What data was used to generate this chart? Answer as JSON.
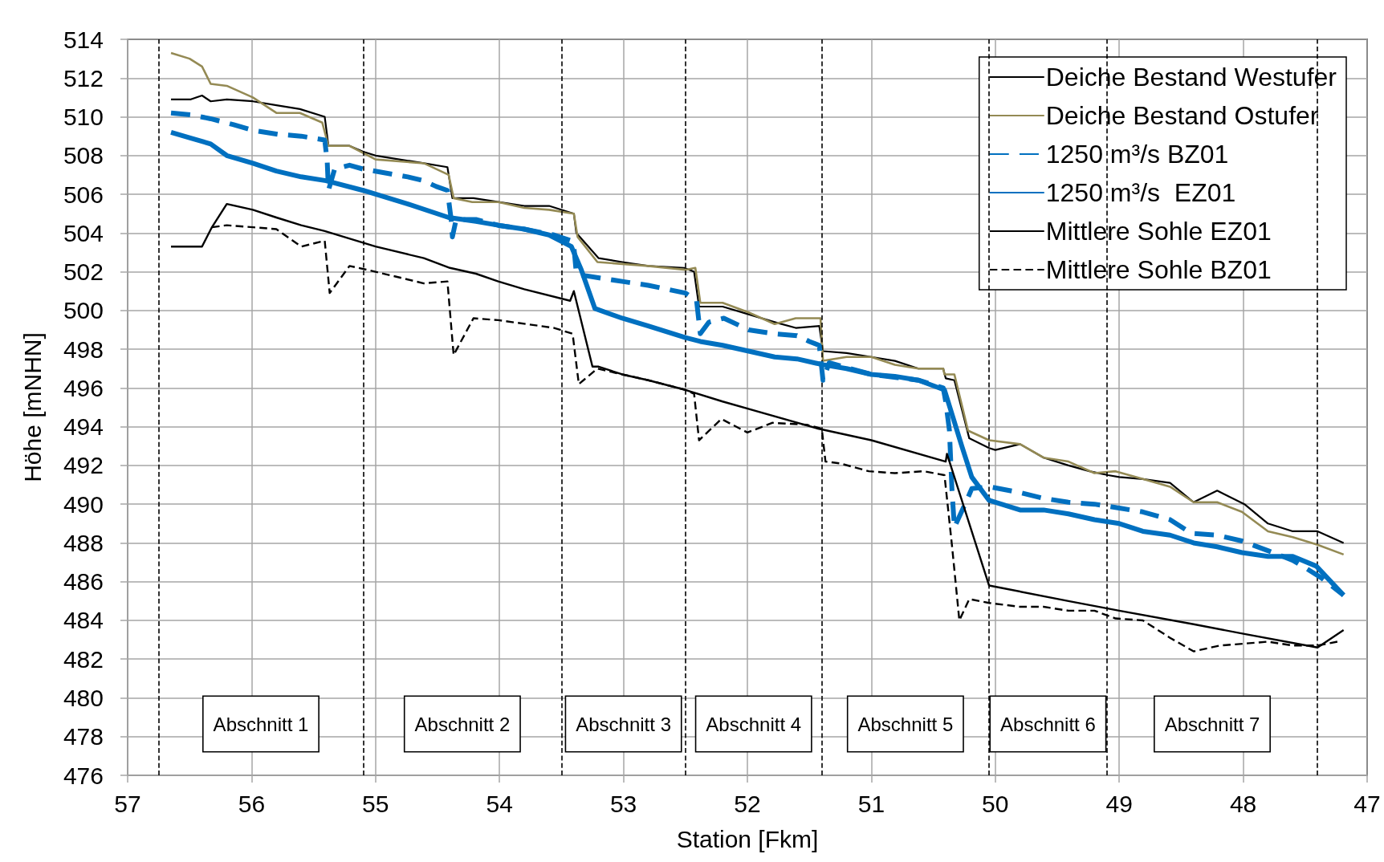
{
  "chart_data": {
    "type": "line",
    "xlabel": "Station [Fkm]",
    "ylabel": "Höhe [mNHN]",
    "xlim": [
      57,
      47
    ],
    "xticks": [
      57,
      56,
      55,
      54,
      53,
      52,
      51,
      50,
      49,
      48,
      47
    ],
    "ylim": [
      476,
      514
    ],
    "yticks": [
      476,
      478,
      480,
      482,
      484,
      486,
      488,
      490,
      492,
      494,
      496,
      498,
      500,
      502,
      504,
      506,
      508,
      510,
      512,
      514
    ],
    "grid": true,
    "legend": "top right",
    "series": [
      {
        "name": "Deiche Bestand Westufer",
        "color": "#000000",
        "line_style": "solid",
        "x": [
          56.65,
          56.49,
          56.4,
          56.33,
          56.2,
          55.99,
          55.8,
          55.61,
          55.41,
          55.38,
          55.21,
          55.1,
          55.0,
          54.61,
          54.42,
          54.38,
          54.21,
          54.01,
          53.8,
          53.6,
          53.4,
          53.38,
          53.2,
          53.01,
          52.8,
          52.51,
          52.43,
          52.39,
          52.2,
          51.99,
          51.78,
          51.61,
          51.42,
          51.39,
          51.2,
          51.0,
          50.81,
          50.62,
          50.42,
          50.4,
          50.33,
          50.21,
          50.05,
          50.0,
          49.8,
          49.61,
          49.41,
          49.24,
          49.09,
          49.0,
          48.81,
          48.59,
          48.4,
          48.21,
          47.99,
          47.8,
          47.6,
          47.4,
          47.19
        ],
        "values": [
          510.9,
          510.9,
          511.1,
          510.8,
          510.9,
          510.8,
          510.6,
          510.4,
          510.0,
          508.5,
          508.5,
          508.2,
          508.0,
          507.6,
          507.4,
          505.8,
          505.8,
          505.6,
          505.4,
          505.4,
          505.0,
          504.0,
          502.7,
          502.5,
          502.3,
          502.2,
          502.0,
          500.2,
          500.2,
          499.8,
          499.4,
          499.1,
          499.2,
          497.9,
          497.8,
          497.6,
          497.4,
          497.0,
          497.0,
          496.5,
          496.4,
          493.4,
          492.9,
          492.8,
          493.1,
          492.4,
          492.0,
          491.7,
          491.5,
          491.4,
          491.3,
          491.1,
          490.1,
          490.7,
          490.0,
          489.0,
          488.6,
          488.6,
          488.0
        ]
      },
      {
        "name": "Deiche Bestand Ostufer",
        "color": "#948a54",
        "line_style": "solid",
        "x": [
          56.65,
          56.5,
          56.4,
          56.33,
          56.2,
          55.99,
          55.8,
          55.61,
          55.43,
          55.38,
          55.21,
          55.0,
          54.61,
          54.41,
          54.37,
          54.22,
          54.01,
          53.8,
          53.6,
          53.4,
          53.37,
          53.21,
          52.8,
          52.5,
          52.42,
          52.38,
          52.2,
          51.99,
          51.78,
          51.61,
          51.41,
          51.39,
          51.2,
          51.0,
          50.81,
          50.62,
          50.42,
          50.41,
          50.33,
          50.22,
          50.05,
          49.8,
          49.61,
          49.41,
          49.2,
          49.03,
          48.81,
          48.59,
          48.4,
          48.21,
          48.01,
          47.8,
          47.6,
          47.4,
          47.19
        ],
        "values": [
          513.3,
          513.0,
          512.6,
          511.7,
          511.6,
          511.0,
          510.2,
          510.2,
          509.7,
          508.5,
          508.5,
          507.8,
          507.6,
          507.0,
          505.8,
          505.6,
          505.6,
          505.3,
          505.2,
          505.0,
          503.8,
          502.5,
          502.3,
          502.1,
          502.2,
          500.4,
          500.4,
          499.9,
          499.3,
          499.6,
          499.6,
          497.4,
          497.6,
          497.6,
          497.2,
          497.0,
          497.0,
          496.7,
          496.7,
          493.8,
          493.3,
          493.1,
          492.4,
          492.2,
          491.6,
          491.7,
          491.3,
          490.9,
          490.1,
          490.1,
          489.6,
          488.6,
          488.3,
          487.9,
          487.4
        ]
      },
      {
        "name": "1250 m³/s BZ01",
        "color": "#0070c0",
        "line_style": "dashed",
        "x": [
          56.65,
          56.49,
          56.33,
          56.15,
          55.99,
          55.79,
          55.6,
          55.41,
          55.39,
          55.38,
          55.33,
          55.21,
          55.1,
          54.74,
          54.61,
          54.51,
          54.42,
          54.39,
          54.38,
          54.35,
          54.19,
          54.01,
          53.8,
          53.56,
          53.42,
          53.4,
          53.38,
          53.31,
          53.01,
          52.8,
          52.5,
          52.41,
          52.38,
          52.31,
          52.19,
          51.99,
          51.78,
          51.6,
          51.5,
          51.42,
          51.39,
          51.34,
          51.0,
          50.62,
          50.42,
          50.4,
          50.37,
          50.35,
          50.33,
          50.23,
          50.19,
          50.05,
          49.8,
          49.61,
          49.41,
          49.2,
          49.0,
          48.81,
          48.59,
          48.42,
          48.21,
          48.01,
          47.8,
          47.6,
          47.47,
          47.37,
          47.19
        ],
        "values": [
          510.2,
          510.1,
          509.9,
          509.6,
          509.3,
          509.1,
          509.0,
          508.8,
          507.7,
          506.2,
          507.3,
          507.5,
          507.3,
          506.9,
          506.7,
          506.4,
          506.2,
          504.7,
          503.8,
          504.7,
          504.7,
          504.4,
          504.2,
          503.9,
          503.6,
          503.3,
          501.9,
          501.8,
          501.5,
          501.3,
          500.9,
          500.5,
          498.8,
          499.4,
          499.6,
          499.0,
          498.8,
          498.7,
          498.4,
          498.2,
          496.4,
          497.3,
          496.7,
          496.4,
          496.0,
          495.3,
          493.8,
          490.8,
          488.8,
          490.2,
          490.8,
          490.9,
          490.6,
          490.3,
          490.1,
          490.0,
          489.8,
          489.6,
          489.2,
          488.5,
          488.4,
          488.1,
          487.6,
          487.1,
          486.6,
          486.2,
          485.3
        ]
      },
      {
        "name": "1250 m³/s  EZ01",
        "color": "#0070c0",
        "line_style": "solid",
        "x": [
          56.65,
          56.49,
          56.33,
          56.2,
          55.99,
          55.8,
          55.6,
          55.4,
          55.1,
          54.74,
          54.41,
          54.19,
          54.01,
          53.8,
          53.6,
          53.42,
          53.34,
          53.23,
          53.01,
          52.8,
          52.5,
          52.38,
          52.2,
          51.99,
          51.78,
          51.6,
          51.39,
          51.2,
          51.0,
          50.81,
          50.62,
          50.41,
          50.27,
          50.19,
          50.05,
          49.8,
          49.61,
          49.41,
          49.2,
          49.0,
          48.81,
          48.59,
          48.4,
          48.21,
          48.01,
          47.8,
          47.6,
          47.41,
          47.19
        ],
        "values": [
          509.2,
          508.9,
          508.6,
          508.0,
          507.6,
          507.2,
          506.9,
          506.7,
          506.2,
          505.5,
          504.8,
          504.6,
          504.4,
          504.2,
          503.9,
          503.3,
          502.1,
          500.1,
          499.6,
          499.2,
          498.6,
          498.4,
          498.2,
          497.9,
          497.6,
          497.5,
          497.2,
          497.0,
          496.7,
          496.6,
          496.4,
          495.9,
          493.0,
          491.4,
          490.2,
          489.7,
          489.7,
          489.5,
          489.2,
          489.0,
          488.6,
          488.4,
          488.0,
          487.8,
          487.5,
          487.3,
          487.3,
          486.8,
          485.3
        ]
      },
      {
        "name": "Mittlere Sohle EZ01",
        "color": "#000000",
        "line_style": "solid",
        "x": [
          56.65,
          56.4,
          56.32,
          56.2,
          55.99,
          55.8,
          55.6,
          55.41,
          55.0,
          54.61,
          54.4,
          54.19,
          54.01,
          53.8,
          53.43,
          53.4,
          53.25,
          53.2,
          53.01,
          52.8,
          52.5,
          52.2,
          51.43,
          51.0,
          50.4,
          50.39,
          50.05,
          49.41,
          49.0,
          48.4,
          47.99,
          47.4,
          47.19
        ],
        "values": [
          503.3,
          503.3,
          504.3,
          505.5,
          505.2,
          504.8,
          504.4,
          504.1,
          503.3,
          502.7,
          502.2,
          501.9,
          501.5,
          501.1,
          500.5,
          501.0,
          497.1,
          497.1,
          496.7,
          496.4,
          495.9,
          495.3,
          493.9,
          493.3,
          492.2,
          492.6,
          485.8,
          485.0,
          484.5,
          483.8,
          483.3,
          482.6,
          483.5
        ]
      },
      {
        "name": "Mittlere Sohle BZ01",
        "color": "#000000",
        "line_style": "dashed",
        "x": [
          56.32,
          56.2,
          55.99,
          55.8,
          55.6,
          55.41,
          55.37,
          55.21,
          55.0,
          54.61,
          54.42,
          54.37,
          54.21,
          54.01,
          53.56,
          53.41,
          53.36,
          53.21,
          53.01,
          52.8,
          52.5,
          52.43,
          52.39,
          52.21,
          52.0,
          51.8,
          51.52,
          51.4,
          51.37,
          51.25,
          51.02,
          50.81,
          50.58,
          50.41,
          50.35,
          50.29,
          50.21,
          50.05,
          49.8,
          49.61,
          49.41,
          49.2,
          49.03,
          48.81,
          48.59,
          48.4,
          48.19,
          47.99,
          47.8,
          47.6,
          47.4,
          47.24
        ],
        "values": [
          504.3,
          504.4,
          504.3,
          504.2,
          503.3,
          503.6,
          500.9,
          502.3,
          502.0,
          501.4,
          501.5,
          497.7,
          499.6,
          499.5,
          499.1,
          498.8,
          496.2,
          497.0,
          496.7,
          496.4,
          495.9,
          495.7,
          493.3,
          494.4,
          493.7,
          494.2,
          494.1,
          493.9,
          492.2,
          492.1,
          491.7,
          491.6,
          491.7,
          491.5,
          487.9,
          484.0,
          485.1,
          484.9,
          484.7,
          484.7,
          484.5,
          484.5,
          484.1,
          484.0,
          483.1,
          482.4,
          482.7,
          482.8,
          482.9,
          482.7,
          482.7,
          482.9
        ]
      }
    ],
    "ref_lines": [
      {
        "axis": "x",
        "value": 56.75,
        "color": "#000000",
        "line_style": "dashed"
      },
      {
        "axis": "x",
        "value": 55.1,
        "color": "#000000",
        "line_style": "dashed"
      },
      {
        "axis": "x",
        "value": 53.5,
        "color": "#000000",
        "line_style": "dashed"
      },
      {
        "axis": "x",
        "value": 52.5,
        "color": "#000000",
        "line_style": "dashed"
      },
      {
        "axis": "x",
        "value": 51.4,
        "color": "#000000",
        "line_style": "dashed"
      },
      {
        "axis": "x",
        "value": 50.05,
        "color": "#000000",
        "line_style": "dashed"
      },
      {
        "axis": "x",
        "value": 49.1,
        "color": "#000000",
        "line_style": "dashed"
      },
      {
        "axis": "x",
        "value": 47.4,
        "color": "#000000",
        "line_style": "dashed"
      }
    ],
    "annotations": [
      "Abschnitt 1",
      "Abschnitt 2",
      "Abschnitt 3",
      "Abschnitt 4",
      "Abschnitt 5",
      "Abschnitt 6",
      "Abschnitt 7"
    ]
  }
}
